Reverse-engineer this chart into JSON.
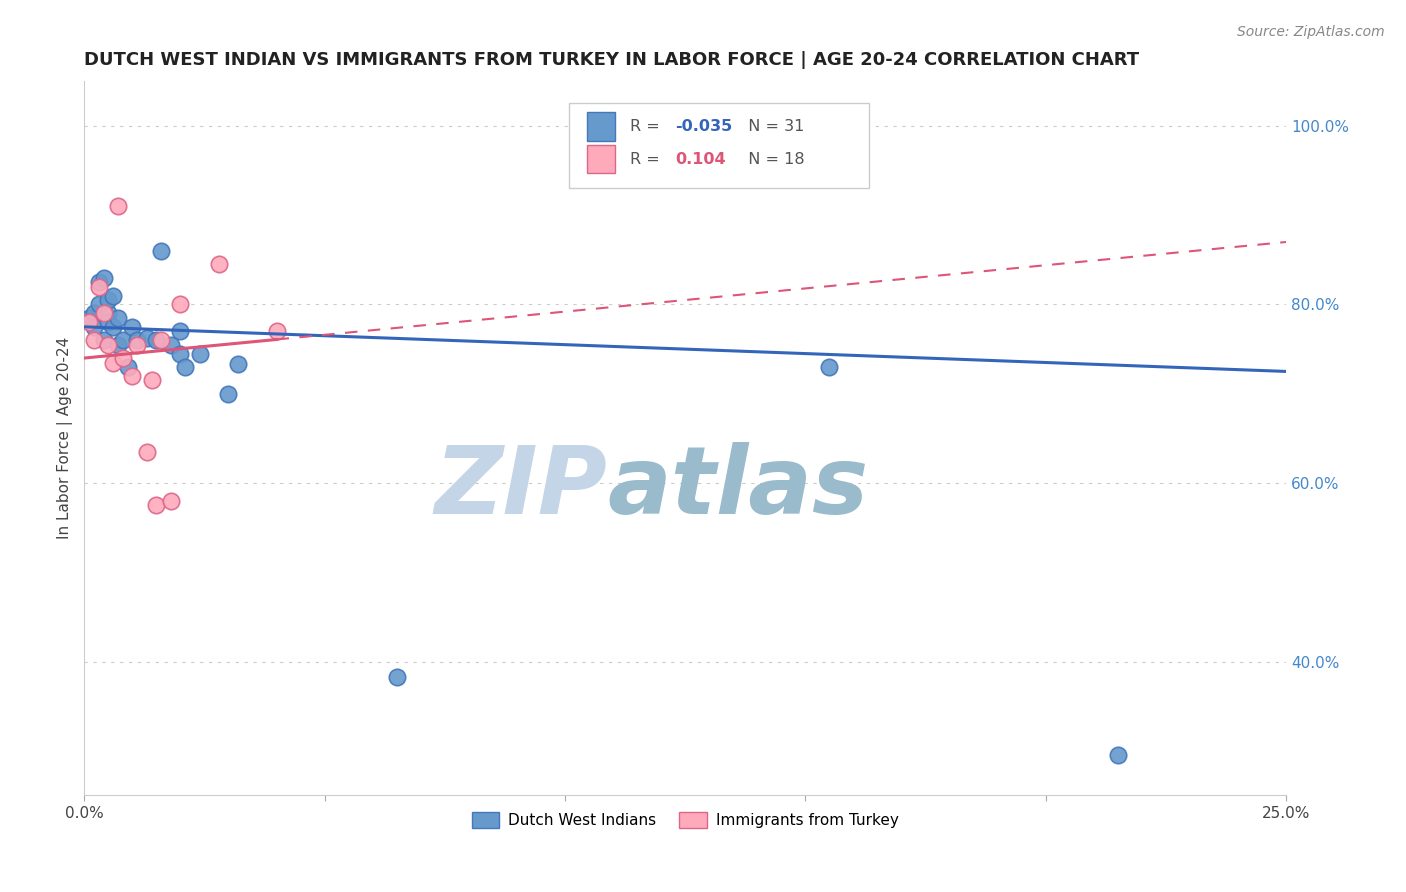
{
  "title": "DUTCH WEST INDIAN VS IMMIGRANTS FROM TURKEY IN LABOR FORCE | AGE 20-24 CORRELATION CHART",
  "source": "Source: ZipAtlas.com",
  "ylabel": "In Labor Force | Age 20-24",
  "xlim": [
    0.0,
    0.25
  ],
  "ylim": [
    0.25,
    1.05
  ],
  "xticks": [
    0.0,
    0.05,
    0.1,
    0.15,
    0.2,
    0.25
  ],
  "xtick_labels": [
    "0.0%",
    "",
    "",
    "",
    "",
    "25.0%"
  ],
  "ytick_labels": [
    "100.0%",
    "80.0%",
    "60.0%",
    "40.0%"
  ],
  "ytick_positions": [
    1.0,
    0.8,
    0.6,
    0.4
  ],
  "blue_x": [
    0.001,
    0.002,
    0.002,
    0.003,
    0.003,
    0.004,
    0.004,
    0.005,
    0.005,
    0.005,
    0.006,
    0.006,
    0.007,
    0.007,
    0.008,
    0.009,
    0.01,
    0.011,
    0.013,
    0.015,
    0.016,
    0.018,
    0.02,
    0.02,
    0.021,
    0.024,
    0.03,
    0.032,
    0.065,
    0.155,
    0.215
  ],
  "blue_y": [
    0.785,
    0.79,
    0.775,
    0.825,
    0.8,
    0.83,
    0.76,
    0.79,
    0.78,
    0.805,
    0.775,
    0.81,
    0.785,
    0.755,
    0.76,
    0.73,
    0.775,
    0.76,
    0.762,
    0.76,
    0.86,
    0.755,
    0.77,
    0.745,
    0.73,
    0.745,
    0.7,
    0.733,
    0.383,
    0.73,
    0.295
  ],
  "pink_x": [
    0.001,
    0.002,
    0.003,
    0.004,
    0.005,
    0.006,
    0.007,
    0.008,
    0.01,
    0.011,
    0.013,
    0.014,
    0.015,
    0.016,
    0.018,
    0.02,
    0.028,
    0.04
  ],
  "pink_y": [
    0.78,
    0.76,
    0.82,
    0.79,
    0.755,
    0.735,
    0.91,
    0.74,
    0.72,
    0.755,
    0.635,
    0.715,
    0.575,
    0.76,
    0.58,
    0.8,
    0.845,
    0.77
  ],
  "blue_color": "#6699cc",
  "pink_color": "#ffaabb",
  "blue_edge_color": "#4477bb",
  "pink_edge_color": "#dd6688",
  "blue_line_color": "#3366bb",
  "pink_line_color": "#dd5577",
  "watermark_zip_color": "#c5d5e8",
  "watermark_atlas_color": "#99bbcc",
  "R_blue": -0.035,
  "N_blue": 31,
  "R_pink": 0.104,
  "N_pink": 18,
  "blue_line_y0": 0.775,
  "blue_line_y1": 0.725,
  "pink_line_y0": 0.74,
  "pink_line_y1": 0.87,
  "legend_labels": [
    "Dutch West Indians",
    "Immigrants from Turkey"
  ],
  "background_color": "#ffffff",
  "grid_color": "#cccccc",
  "title_fontsize": 13,
  "axis_label_fontsize": 11,
  "tick_fontsize": 11,
  "right_tick_color": "#4488cc"
}
